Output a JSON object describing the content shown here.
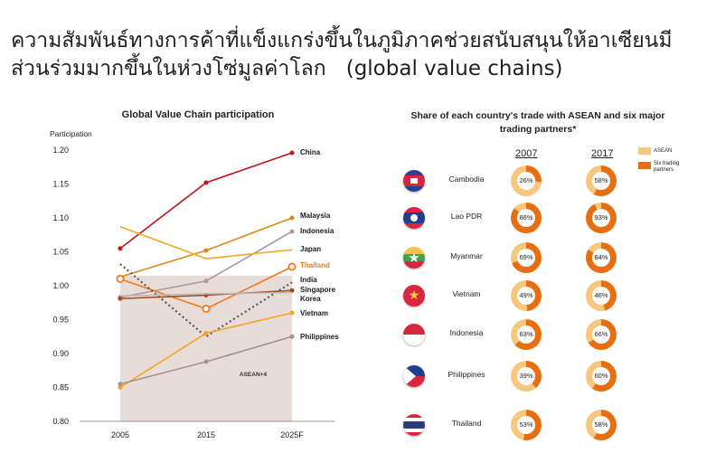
{
  "slide": {
    "title_th": "ความสัมพันธ์ทางการค้าที่แข็งแกร่งขึ้นในภูมิภาคช่วยสนับสนุนให้อาเซียนมีส่วนร่วมมากขึ้นในห่วงโซ่มูลค่าโลก",
    "title_en": "(global value chains)"
  },
  "colors": {
    "asean": "#F8C77E",
    "six_partners": "#E86E12"
  },
  "chart_data": [
    {
      "type": "line",
      "title": "Global Value Chain participation",
      "ylabel": "Participation",
      "xlabel": "",
      "x": [
        "2005",
        "2015",
        "2025F"
      ],
      "ylim": [
        0.8,
        1.2
      ],
      "yticks": [
        "0.80",
        "0.85",
        "0.90",
        "0.95",
        "1.00",
        "1.05",
        "1.10",
        "1.15",
        "1.20"
      ],
      "grid": false,
      "band": {
        "label": "ASEAN+4",
        "y": 1.015,
        "color": "#E8DCD9"
      },
      "series": [
        {
          "name": "China",
          "values": [
            1.055,
            1.152,
            1.196
          ],
          "color": "#C0141B",
          "marker": "dot",
          "dash": false
        },
        {
          "name": "Malaysia",
          "values": [
            1.013,
            1.052,
            1.1
          ],
          "color": "#D98A16",
          "marker": "dot",
          "dash": false
        },
        {
          "name": "Indonesia",
          "values": [
            0.983,
            1.007,
            1.08
          ],
          "color": "#AD9999",
          "marker": "dot",
          "dash": false
        },
        {
          "name": "Japan",
          "values": [
            1.087,
            1.04,
            1.053
          ],
          "color": "#F5A623",
          "marker": "none",
          "dash": false
        },
        {
          "name": "Thailand",
          "values": [
            1.01,
            0.966,
            1.028
          ],
          "color": "#F27A1A",
          "marker": "ring",
          "dash": false
        },
        {
          "name": "India",
          "values": [
            1.032,
            0.925,
            1.005
          ],
          "color": "#555555",
          "marker": "none",
          "dash": true
        },
        {
          "name": "Singapore",
          "values": [
            0.981,
            0.986,
            0.993
          ],
          "color": "#A04A1A",
          "marker": "dot",
          "dash": false
        },
        {
          "name": "Korea",
          "values": [
            0.985,
            0.988,
            0.99
          ],
          "color": "#B8B8B8",
          "marker": "none",
          "dash": false
        },
        {
          "name": "Vietnam",
          "values": [
            0.85,
            0.93,
            0.96
          ],
          "color": "#F5A623",
          "marker": "dot",
          "dash": false
        },
        {
          "name": "Philippines",
          "values": [
            0.855,
            0.888,
            0.925
          ],
          "color": "#A6918D",
          "marker": "dot",
          "dash": false
        }
      ]
    },
    {
      "type": "pie",
      "title": "Share of each country's trade with ASEAN and six major trading partners*",
      "years": [
        "2007",
        "2017"
      ],
      "legend": [
        "ASEAN",
        "Six trading partners"
      ],
      "countries": [
        {
          "name": "Cambodia",
          "flag": "cambodia",
          "values": [
            26,
            58
          ]
        },
        {
          "name": "Lao PDR",
          "flag": "laos",
          "values": [
            86,
            93
          ]
        },
        {
          "name": "Myanmar",
          "flag": "myanmar",
          "values": [
            69,
            84
          ]
        },
        {
          "name": "Vietnam",
          "flag": "vietnam",
          "values": [
            49,
            46
          ]
        },
        {
          "name": "Indonesia",
          "flag": "indonesia",
          "values": [
            63,
            66
          ]
        },
        {
          "name": "Philippines",
          "flag": "philippines",
          "values": [
            39,
            60
          ]
        },
        {
          "name": "Thailand",
          "flag": "thailand",
          "values": [
            53,
            58
          ]
        }
      ]
    }
  ]
}
